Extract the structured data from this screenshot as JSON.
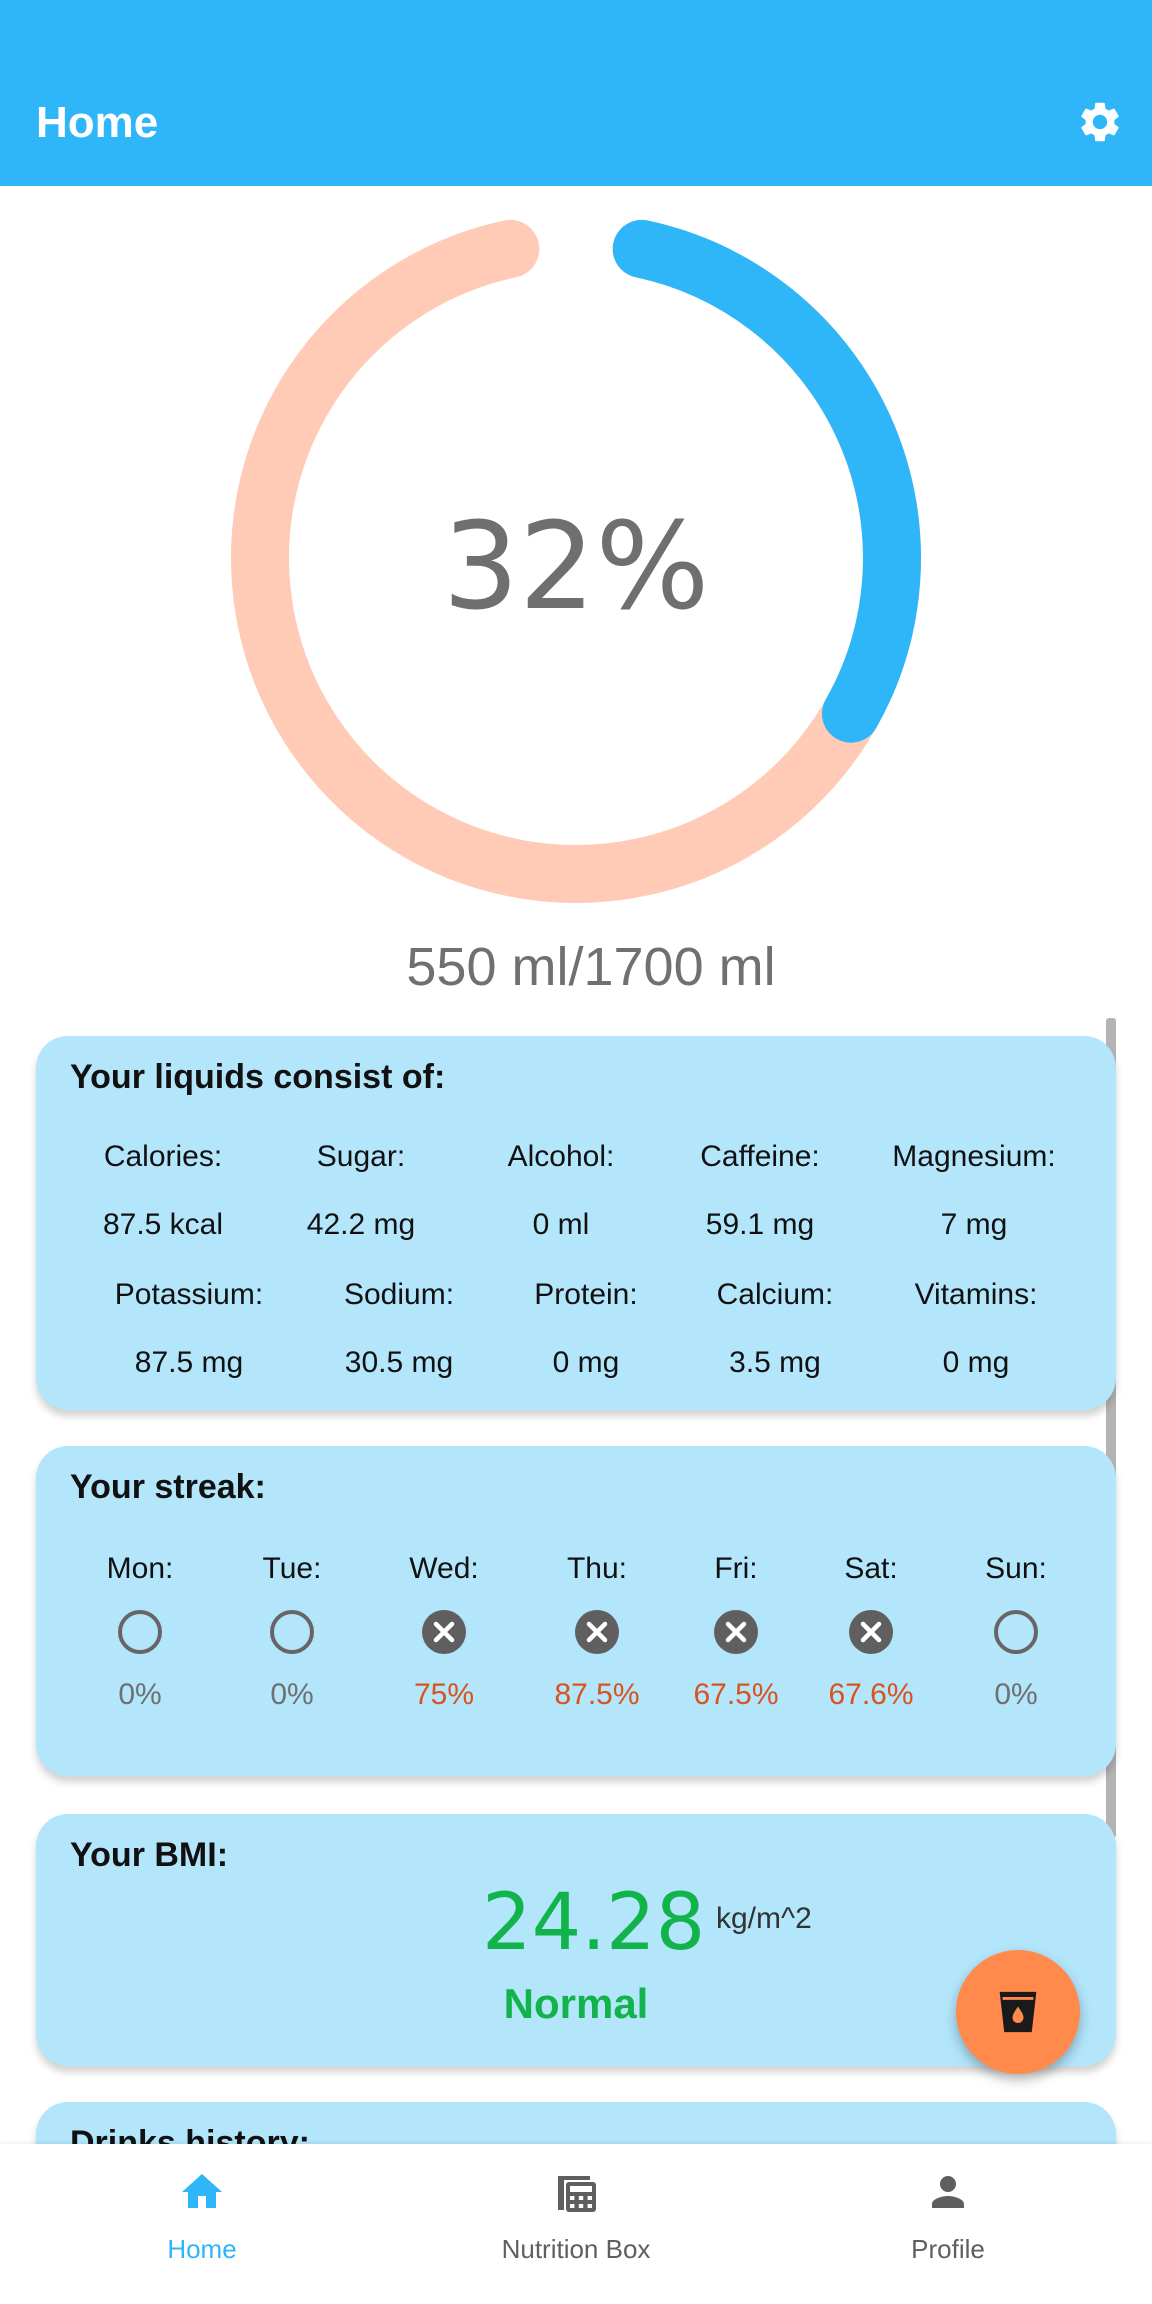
{
  "appbar": {
    "title": "Home"
  },
  "progress": {
    "percent_label": "32%",
    "fraction": 0.32,
    "volume_label": "550 ml/1700 ml",
    "colors": {
      "filled": "#2eb6f9",
      "track": "#ffcbb7"
    }
  },
  "liquids": {
    "title": "Your liquids consist of:",
    "row1": [
      {
        "label": "Calories:",
        "value": "87.5 kcal"
      },
      {
        "label": "Sugar:",
        "value": "42.2 mg"
      },
      {
        "label": "Alcohol:",
        "value": "0 ml"
      },
      {
        "label": "Caffeine:",
        "value": "59.1 mg"
      },
      {
        "label": "Magnesium:",
        "value": "7 mg"
      }
    ],
    "row2": [
      {
        "label": "Potassium:",
        "value": "87.5 mg"
      },
      {
        "label": "Sodium:",
        "value": "30.5 mg"
      },
      {
        "label": "Protein:",
        "value": "0 mg"
      },
      {
        "label": "Calcium:",
        "value": "3.5 mg"
      },
      {
        "label": "Vitamins:",
        "value": "0 mg"
      }
    ]
  },
  "streak": {
    "title": "Your streak:",
    "days": [
      {
        "label": "Mon:",
        "value": "0%",
        "status": "empty",
        "icon": "empty-circle-icon"
      },
      {
        "label": "Tue:",
        "value": "0%",
        "status": "empty",
        "icon": "empty-circle-icon"
      },
      {
        "label": "Wed:",
        "value": "75%",
        "status": "missed",
        "icon": "x-circle-icon"
      },
      {
        "label": "Thu:",
        "value": "87.5%",
        "status": "missed",
        "icon": "x-circle-icon"
      },
      {
        "label": "Fri:",
        "value": "67.5%",
        "status": "missed",
        "icon": "x-circle-icon"
      },
      {
        "label": "Sat:",
        "value": "67.6%",
        "status": "missed",
        "icon": "x-circle-icon"
      },
      {
        "label": "Sun:",
        "value": "0%",
        "status": "empty",
        "icon": "empty-circle-icon"
      }
    ],
    "colors": {
      "missed": "#d9531e",
      "empty": "#707070"
    }
  },
  "bmi": {
    "title": "Your BMI:",
    "value": "24.28",
    "unit": "kg/m^2",
    "status": "Normal",
    "color": "#12b34a"
  },
  "history": {
    "title": "Drinks history:"
  },
  "fab": {
    "icon": "drink-glass-icon"
  },
  "bottom_nav": {
    "items": [
      {
        "label": "Home",
        "icon": "home-icon",
        "active": true
      },
      {
        "label": "Nutrition Box",
        "icon": "calculator-icon",
        "active": false
      },
      {
        "label": "Profile",
        "icon": "person-icon",
        "active": false
      }
    ]
  }
}
